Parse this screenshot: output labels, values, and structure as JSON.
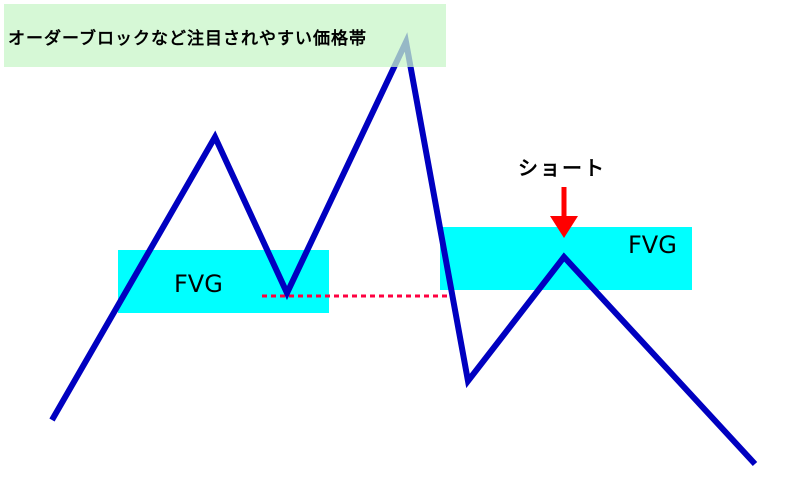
{
  "title_label": "オーダーブロックなど注目されやすい価格帯",
  "fvg_left_label": "FVG",
  "fvg_right_label": "FVG",
  "short_label": "ショート",
  "colors": {
    "price_line": "#0000c0",
    "fvg_zone": "#00ffff",
    "order_block_zone": "#ccf5cc",
    "dashed_level": "#ff0040",
    "arrow": "#ff0000"
  }
}
